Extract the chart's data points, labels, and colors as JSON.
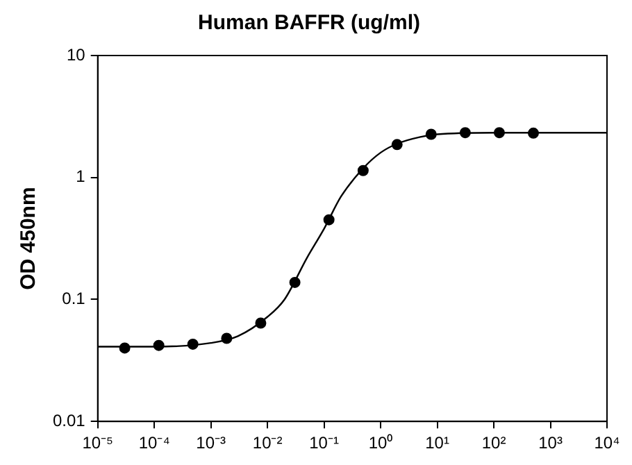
{
  "chart_data": {
    "type": "scatter",
    "title": "Human BAFFR (ug/ml)",
    "ylabel": "OD 450nm",
    "log": "xy",
    "grid": false,
    "legend": false,
    "xlim": [
      1e-05,
      10000
    ],
    "ylim": [
      0.01,
      10
    ],
    "xticks": [
      {
        "value": 1e-05,
        "label": "10⁻⁵"
      },
      {
        "value": 0.0001,
        "label": "10⁻⁴"
      },
      {
        "value": 0.001,
        "label": "10⁻³"
      },
      {
        "value": 0.01,
        "label": "10⁻²"
      },
      {
        "value": 0.1,
        "label": "10⁻¹"
      },
      {
        "value": 1,
        "label": "10⁰"
      },
      {
        "value": 10,
        "label": "10¹"
      },
      {
        "value": 100,
        "label": "10²"
      },
      {
        "value": 1000,
        "label": "10³"
      },
      {
        "value": 10000,
        "label": "10⁴"
      }
    ],
    "yticks": [
      0.01,
      0.1,
      1,
      10
    ],
    "series": [
      {
        "color": "#000000",
        "marker": "circle",
        "x": [
          3e-05,
          0.00012,
          0.00048,
          0.0019,
          0.0076,
          0.0305,
          0.122,
          0.49,
          1.95,
          7.8,
          31.25,
          125,
          500
        ],
        "values": [
          0.04,
          0.042,
          0.043,
          0.048,
          0.064,
          0.138,
          0.45,
          1.14,
          1.86,
          2.26,
          2.33,
          2.33,
          2.31
        ]
      },
      {
        "type": "line",
        "color": "#000000",
        "marker": "none",
        "line_style": "solid",
        "x": [
          1e-05,
          0.0001,
          0.001,
          0.003,
          0.01,
          0.02,
          0.05,
          0.1,
          0.2,
          0.5,
          1,
          2,
          5,
          10,
          100,
          10000
        ],
        "values": [
          0.041,
          0.041,
          0.044,
          0.05,
          0.072,
          0.1,
          0.22,
          0.38,
          0.7,
          1.2,
          1.6,
          1.9,
          2.15,
          2.26,
          2.33,
          2.33
        ]
      }
    ]
  }
}
